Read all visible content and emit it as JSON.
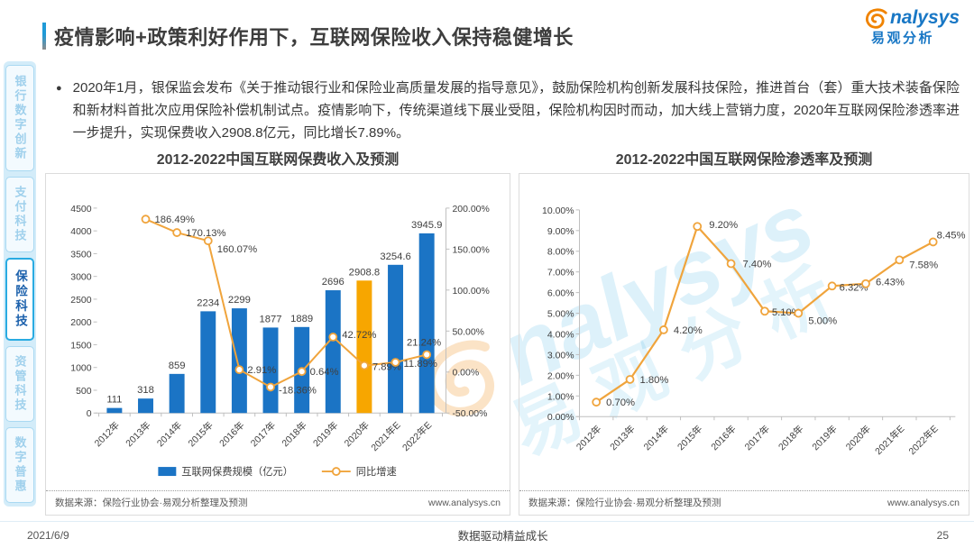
{
  "header": {
    "title": "疫情影响+政策利好作用下，互联网保险收入保持稳健增长",
    "logo": {
      "latin": "analysys",
      "cn": "易观分析"
    }
  },
  "sidebar": {
    "items": [
      {
        "label": "银行数字创新",
        "active": false
      },
      {
        "label": "支付科技",
        "active": false
      },
      {
        "label": "保险科技",
        "active": true
      },
      {
        "label": "资管科技",
        "active": false
      },
      {
        "label": "数字普惠",
        "active": false
      }
    ]
  },
  "bullet": {
    "marker": "●",
    "text": "2020年1月，银保监会发布《关于推动银行业和保险业高质量发展的指导意见》，鼓励保险机构创新发展科技保险，推进首台（套）重大技术装备保险和新材料首批次应用保险补偿机制试点。疫情影响下，传统渠道线下展业受阻，保险机构因时而动，加大线上营销力度，2020年互联网保险渗透率进一步提升，实现保费收入2908.8亿元，同比增长7.89%。"
  },
  "watermark": {
    "latin": "analysys",
    "cn": "易观分析"
  },
  "chart_data": [
    {
      "type": "bar",
      "title": "2012-2022中国互联网保费收入及预测",
      "categories": [
        "2012年",
        "2013年",
        "2014年",
        "2015年",
        "2016年",
        "2017年",
        "2018年",
        "2019年",
        "2020年",
        "2021年E",
        "2022年E"
      ],
      "series": [
        {
          "name": "互联网保费规模（亿元）",
          "type": "bar",
          "axis": "left",
          "values": [
            111,
            318,
            859,
            2234,
            2299,
            1877,
            1889,
            2696,
            2908.8,
            3254.6,
            3945.9
          ],
          "labels": [
            "111",
            "318",
            "859",
            "2234",
            "2299",
            "1877",
            "1889",
            "2696",
            "2908.8",
            "3254.6",
            "3945.9"
          ],
          "color": "#1B74C5",
          "highlight_index": 8,
          "highlight_color": "#F7A600"
        },
        {
          "name": "同比增速",
          "type": "line",
          "axis": "right",
          "values": [
            null,
            186.49,
            170.13,
            160.07,
            2.91,
            -18.36,
            0.64,
            42.72,
            7.89,
            11.89,
            21.24
          ],
          "labels": [
            "",
            "186.49%",
            "170.13%",
            "160.07%",
            "2.91%",
            "-18.36%",
            "0.64%",
            "42.72%",
            "7.89%",
            "11.89%",
            "21.24%"
          ],
          "color": "#F0A43C"
        }
      ],
      "left_axis": {
        "min": 0,
        "max": 4500,
        "step": 500
      },
      "right_axis": {
        "min": -50,
        "max": 200,
        "step": 50,
        "format": "percent2"
      },
      "legend": [
        "互联网保费规模（亿元）",
        "同比增速"
      ],
      "legend_position": "bottom",
      "source": "数据来源：保险行业协会·易观分析整理及预测",
      "site": "www.analysys.cn"
    },
    {
      "type": "line",
      "title": "2012-2022中国互联网保险渗透率及预测",
      "categories": [
        "2012年",
        "2013年",
        "2014年",
        "2015年",
        "2016年",
        "2017年",
        "2018年",
        "2019年",
        "2020年",
        "2021年E",
        "2022年E"
      ],
      "series": [
        {
          "type": "line",
          "values": [
            0.7,
            1.8,
            4.2,
            9.2,
            7.4,
            5.1,
            5.0,
            6.32,
            6.43,
            7.58,
            8.45
          ],
          "labels": [
            "0.70%",
            "1.80%",
            "4.20%",
            "9.20%",
            "7.40%",
            "5.10%",
            "5.00%",
            "6.32%",
            "6.43%",
            "7.58%",
            "8.45%"
          ],
          "color": "#F0A43C"
        }
      ],
      "y_axis": {
        "min": 0,
        "max": 10,
        "step": 1,
        "format": "percent2"
      },
      "grid": false,
      "source": "数据来源：保险行业协会·易观分析整理及预测",
      "site": "www.analysys.cn"
    }
  ],
  "footer": {
    "date": "2021/6/9",
    "slogan": "数据驱动精益成长",
    "page": "25"
  }
}
